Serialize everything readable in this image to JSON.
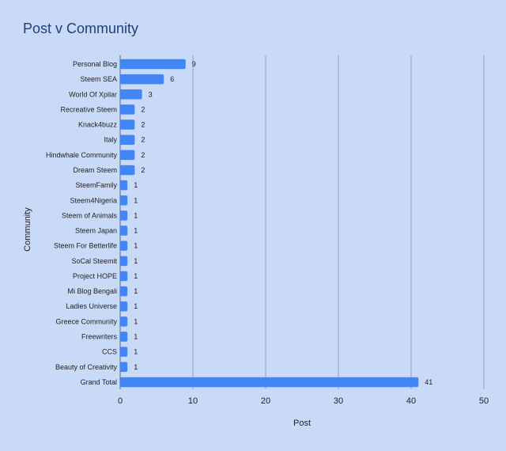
{
  "chart_data": {
    "type": "bar",
    "orientation": "horizontal",
    "title": "Post v Community",
    "xlabel": "Post",
    "ylabel": "Community",
    "xlim": [
      0,
      50
    ],
    "x_ticks": [
      0,
      10,
      20,
      30,
      40,
      50
    ],
    "grid": "vertical",
    "bar_color": "#4285f4",
    "background_color": "#c9daf8",
    "categories": [
      "Personal Blog",
      "Steem SEA",
      "World Of Xpilar",
      "Recreative Steem",
      "Knack4buzz",
      "Italy",
      "Hindwhale Community",
      "Dream Steem",
      "SteemFamily",
      "Steem4Nigeria",
      "Steem of Animals",
      "Steem Japan",
      "Steem For Betterlife",
      "SoCal Steemit",
      "Project HOPE",
      "Mi Blog Bengali",
      "Ladies Universe",
      "Greece Community",
      "Freewriters",
      "CCS",
      "Beauty of Creativity",
      "Grand Total"
    ],
    "values": [
      9,
      6,
      3,
      2,
      2,
      2,
      2,
      2,
      1,
      1,
      1,
      1,
      1,
      1,
      1,
      1,
      1,
      1,
      1,
      1,
      1,
      41
    ]
  }
}
